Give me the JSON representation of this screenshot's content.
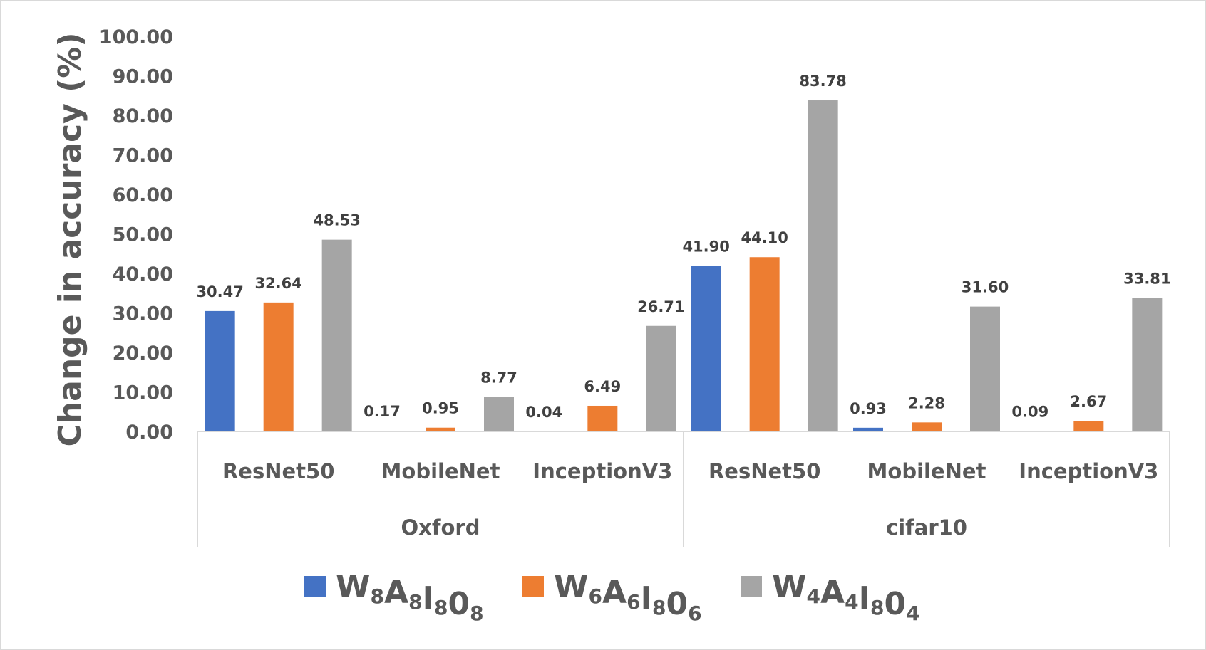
{
  "chart_data": {
    "type": "bar",
    "ylabel": "Change in accuracy (%)",
    "ylim": [
      0,
      100
    ],
    "ytick_step": 10,
    "ytick_format_decimals": 2,
    "grid": false,
    "legend_position": "bottom",
    "groups": [
      {
        "name": "Oxford",
        "categories": [
          "ResNet50",
          "MobileNet",
          "InceptionV3"
        ]
      },
      {
        "name": "cifar10",
        "categories": [
          "ResNet50",
          "MobileNet",
          "InceptionV3"
        ]
      }
    ],
    "series": [
      {
        "name": "W8A8I8O8",
        "name_parts": [
          [
            "W",
            "8"
          ],
          [
            "A",
            "8"
          ],
          [
            "I",
            "8"
          ],
          [
            "0",
            "8"
          ]
        ],
        "color": "#4472c4",
        "values": [
          30.47,
          0.17,
          0.04,
          41.9,
          0.93,
          0.09
        ],
        "labels": [
          "30.47",
          "0.17",
          "0.04",
          "41.90",
          "0.93",
          "0.09"
        ]
      },
      {
        "name": "W6A6I8O6",
        "name_parts": [
          [
            "W",
            "6"
          ],
          [
            "A",
            "6"
          ],
          [
            "I",
            "8"
          ],
          [
            "0",
            "6"
          ]
        ],
        "color": "#ed7d31",
        "values": [
          32.64,
          0.95,
          6.49,
          44.1,
          2.28,
          2.67
        ],
        "labels": [
          "32.64",
          "0.95",
          "6.49",
          "44.10",
          "2.28",
          "2.67"
        ]
      },
      {
        "name": "W4A4I8O4",
        "name_parts": [
          [
            "W",
            "4"
          ],
          [
            "A",
            "4"
          ],
          [
            "I",
            "8"
          ],
          [
            "0",
            "4"
          ]
        ],
        "color": "#a5a5a5",
        "values": [
          48.53,
          8.77,
          26.71,
          83.78,
          31.6,
          33.81
        ],
        "labels": [
          "48.53",
          "8.77",
          "26.71",
          "83.78",
          "31.60",
          "33.81"
        ]
      }
    ]
  }
}
